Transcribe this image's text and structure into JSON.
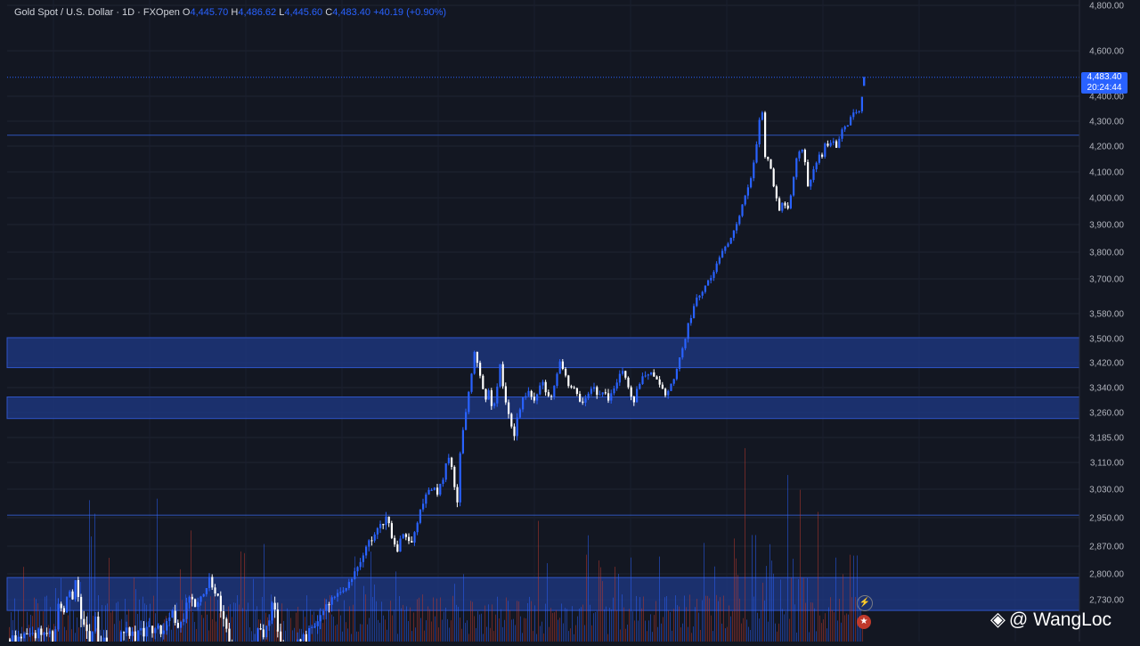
{
  "legend": {
    "symbol": "Gold Spot / U.S. Dollar · 1D · FXOpen",
    "open_label": "O",
    "open_value": "4,445.70",
    "high_label": "H",
    "high_value": "4,486.62",
    "low_label": "L",
    "low_value": "4,445.60",
    "close_label": "C",
    "close_value": "4,483.40",
    "change": "+40.19 (+0.90%)"
  },
  "price_badge": {
    "price": "4,483.40",
    "countdown": "20:24:44"
  },
  "watermark": {
    "text": "@ WangLoc",
    "icon": "binance-diamond-icon"
  },
  "colors": {
    "background": "#131722",
    "up": "#2962ff",
    "down": "#ffffff",
    "zone": "#1e3a8a",
    "accent": "#2962ff"
  },
  "chart_data": {
    "type": "candlestick",
    "y_axis_ticks": [
      "4,800.00",
      "4,600.00",
      "4,400.00",
      "4,300.00",
      "4,200.00",
      "4,100.00",
      "4,000.00",
      "3,900.00",
      "3,800.00",
      "3,700.00",
      "3,580.00",
      "3,500.00",
      "3,420.00",
      "3,340.00",
      "3,260.00",
      "3,185.00",
      "3,110.00",
      "3,030.00",
      "2,950.00",
      "2,870.00",
      "2,800.00",
      "2,730.00"
    ],
    "ylim": [
      2660,
      4810
    ],
    "last_price": 4483.4,
    "horizontal_lines": [
      4244,
      2957
    ],
    "zones": [
      {
        "low": 3404,
        "high": 3503
      },
      {
        "low": 3242,
        "high": 3310
      },
      {
        "low": 2712,
        "high": 2790
      }
    ],
    "path": [
      [
        0,
        2660
      ],
      [
        55,
        2680
      ],
      [
        58,
        2650
      ],
      [
        64,
        2720
      ],
      [
        70,
        2700
      ],
      [
        76,
        2760
      ],
      [
        80,
        2730
      ],
      [
        84,
        2785
      ],
      [
        88,
        2705
      ],
      [
        94,
        2690
      ],
      [
        100,
        2650
      ],
      [
        106,
        2700
      ],
      [
        110,
        2645
      ],
      [
        116,
        2670
      ],
      [
        120,
        2600
      ],
      [
        126,
        2640
      ],
      [
        132,
        2660
      ],
      [
        138,
        2680
      ],
      [
        150,
        2670
      ],
      [
        164,
        2678
      ],
      [
        180,
        2678
      ],
      [
        192,
        2710
      ],
      [
        198,
        2690
      ],
      [
        205,
        2705
      ],
      [
        212,
        2745
      ],
      [
        218,
        2725
      ],
      [
        225,
        2745
      ],
      [
        230,
        2760
      ],
      [
        234,
        2790
      ],
      [
        238,
        2760
      ],
      [
        244,
        2730
      ],
      [
        250,
        2700
      ],
      [
        256,
        2660
      ],
      [
        262,
        2630
      ],
      [
        270,
        2610
      ],
      [
        280,
        2640
      ],
      [
        290,
        2690
      ],
      [
        296,
        2670
      ],
      [
        302,
        2700
      ],
      [
        306,
        2730
      ],
      [
        310,
        2680
      ],
      [
        316,
        2650
      ],
      [
        326,
        2640
      ],
      [
        334,
        2660
      ],
      [
        344,
        2670
      ],
      [
        352,
        2690
      ],
      [
        360,
        2715
      ],
      [
        368,
        2720
      ],
      [
        374,
        2735
      ],
      [
        380,
        2750
      ],
      [
        386,
        2760
      ],
      [
        392,
        2780
      ],
      [
        398,
        2810
      ],
      [
        404,
        2840
      ],
      [
        410,
        2868
      ],
      [
        416,
        2890
      ],
      [
        422,
        2915
      ],
      [
        428,
        2930
      ],
      [
        434,
        2950
      ],
      [
        438,
        2900
      ],
      [
        444,
        2850
      ],
      [
        450,
        2900
      ],
      [
        456,
        2885
      ],
      [
        462,
        2870
      ],
      [
        466,
        2925
      ],
      [
        472,
        2985
      ],
      [
        478,
        3015
      ],
      [
        484,
        3035
      ],
      [
        490,
        3020
      ],
      [
        496,
        3060
      ],
      [
        500,
        3110
      ],
      [
        504,
        3140
      ],
      [
        508,
        3050
      ],
      [
        512,
        2975
      ],
      [
        516,
        3160
      ],
      [
        520,
        3220
      ],
      [
        524,
        3300
      ],
      [
        528,
        3370
      ],
      [
        532,
        3470
      ],
      [
        536,
        3390
      ],
      [
        540,
        3360
      ],
      [
        544,
        3300
      ],
      [
        548,
        3330
      ],
      [
        552,
        3260
      ],
      [
        556,
        3310
      ],
      [
        560,
        3420
      ],
      [
        564,
        3330
      ],
      [
        568,
        3270
      ],
      [
        572,
        3240
      ],
      [
        576,
        3180
      ],
      [
        580,
        3260
      ],
      [
        586,
        3300
      ],
      [
        592,
        3330
      ],
      [
        598,
        3290
      ],
      [
        604,
        3340
      ],
      [
        608,
        3370
      ],
      [
        612,
        3320
      ],
      [
        616,
        3300
      ],
      [
        620,
        3340
      ],
      [
        624,
        3380
      ],
      [
        628,
        3420
      ],
      [
        632,
        3400
      ],
      [
        636,
        3360
      ],
      [
        640,
        3340
      ],
      [
        646,
        3330
      ],
      [
        652,
        3290
      ],
      [
        658,
        3320
      ],
      [
        664,
        3350
      ],
      [
        670,
        3310
      ],
      [
        676,
        3330
      ],
      [
        682,
        3300
      ],
      [
        688,
        3340
      ],
      [
        694,
        3380
      ],
      [
        698,
        3400
      ],
      [
        702,
        3360
      ],
      [
        706,
        3330
      ],
      [
        710,
        3285
      ],
      [
        714,
        3330
      ],
      [
        718,
        3360
      ],
      [
        722,
        3380
      ],
      [
        728,
        3390
      ],
      [
        734,
        3370
      ],
      [
        740,
        3340
      ],
      [
        746,
        3320
      ],
      [
        752,
        3340
      ],
      [
        756,
        3380
      ],
      [
        760,
        3420
      ],
      [
        764,
        3455
      ],
      [
        768,
        3490
      ],
      [
        772,
        3550
      ],
      [
        776,
        3585
      ],
      [
        780,
        3620
      ],
      [
        784,
        3650
      ],
      [
        788,
        3660
      ],
      [
        794,
        3690
      ],
      [
        800,
        3730
      ],
      [
        804,
        3760
      ],
      [
        808,
        3790
      ],
      [
        812,
        3810
      ],
      [
        818,
        3850
      ],
      [
        824,
        3880
      ],
      [
        830,
        3950
      ],
      [
        834,
        3990
      ],
      [
        838,
        4040
      ],
      [
        842,
        4080
      ],
      [
        846,
        4150
      ],
      [
        850,
        4250
      ],
      [
        853,
        4370
      ],
      [
        856,
        4300
      ],
      [
        858,
        4160
      ],
      [
        862,
        4140
      ],
      [
        866,
        4080
      ],
      [
        870,
        4010
      ],
      [
        874,
        3960
      ],
      [
        878,
        3990
      ],
      [
        882,
        3950
      ],
      [
        886,
        3980
      ],
      [
        890,
        4080
      ],
      [
        894,
        4160
      ],
      [
        898,
        4200
      ],
      [
        902,
        4150
      ],
      [
        906,
        4050
      ],
      [
        910,
        4080
      ],
      [
        914,
        4120
      ],
      [
        918,
        4170
      ],
      [
        922,
        4160
      ],
      [
        926,
        4220
      ],
      [
        930,
        4200
      ],
      [
        934,
        4230
      ],
      [
        938,
        4190
      ],
      [
        942,
        4240
      ],
      [
        946,
        4280
      ],
      [
        950,
        4270
      ],
      [
        954,
        4320
      ],
      [
        958,
        4340
      ],
      [
        962,
        4330
      ],
      [
        966,
        4370
      ],
      [
        969,
        4483
      ]
    ]
  }
}
